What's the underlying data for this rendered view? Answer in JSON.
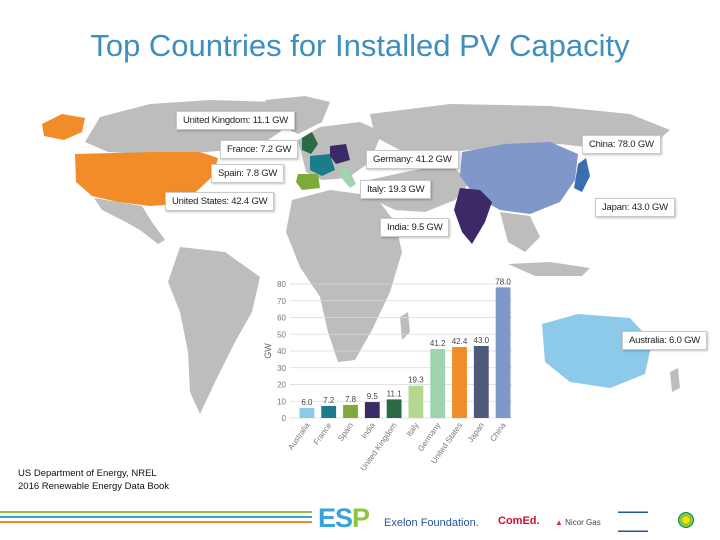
{
  "title": "Top Countries for Installed PV Capacity",
  "callouts": {
    "uk": "United Kingdom: 11.1 GW",
    "france": "France: 7.2 GW",
    "spain": "Spain: 7.8 GW",
    "us": "United States: 42.4 GW",
    "germany": "Germany: 41.2 GW",
    "italy": "Italy: 19.3 GW",
    "india": "India: 9.5 GW",
    "china": "China: 78.0 GW",
    "japan": "Japan: 43.0 GW",
    "australia": "Australia: 6.0 GW"
  },
  "chart_data": {
    "type": "bar",
    "categories": [
      "Australia",
      "France",
      "Spain",
      "India",
      "United Kingdom",
      "Italy",
      "Germany",
      "United States",
      "Japan",
      "China"
    ],
    "values": [
      6.0,
      7.2,
      7.8,
      9.5,
      11.1,
      19.3,
      41.2,
      42.4,
      43.0,
      78.0
    ],
    "value_labels": [
      "6.0",
      "7.2",
      "7.8",
      "9.5",
      "11.1",
      "19.3",
      "41.2",
      "42.4",
      "43.0",
      "78.0"
    ],
    "colors": [
      "#8dc9e8",
      "#1a7d8c",
      "#7dab3a",
      "#3b2a66",
      "#2b6a45",
      "#b5d88f",
      "#9fd4b0",
      "#f28c28",
      "#4d5a7a",
      "#7f97c9"
    ],
    "ylabel": "GW",
    "ylim": [
      0,
      80
    ],
    "yticks": [
      "0",
      "10",
      "20",
      "30",
      "40",
      "50",
      "60",
      "70",
      "80"
    ],
    "grid": true
  },
  "source": {
    "line1": "US Department of Energy, NREL",
    "line2": "2016 Renewable Energy Data Book"
  },
  "logos": {
    "esp_main": "ES",
    "esp_p": "P",
    "exelon": "Exelon Foundation.",
    "comed": "ComEd.",
    "nicor": "Nicor Gas"
  },
  "colors": {
    "title": "#3e8ebf",
    "map_land": "#bdbdbd",
    "footer_line_1": "#8cc63f",
    "footer_line_2": "#3aa3d9",
    "footer_line_3": "#f28c28"
  }
}
